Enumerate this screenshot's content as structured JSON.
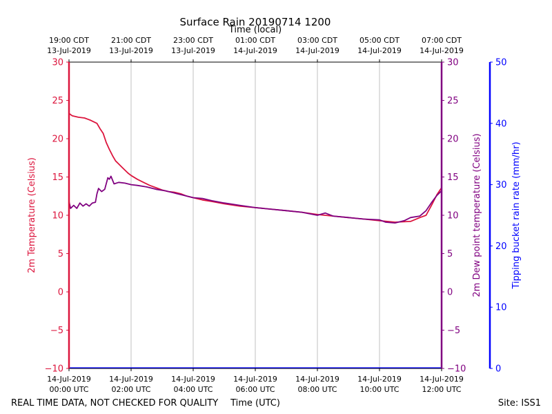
{
  "chart_data": {
    "type": "line",
    "title": "Surface Rain 20190714 1200",
    "top_xlabel": "Time (local)",
    "xlabel": "Time (UTC)",
    "ylabel_left": "2m Temperature (Celsius)",
    "ylabel_right": "2m Dew point temperature (Celsius)",
    "ylabel_far_right": "Tipping bucket rain rate (mm/hr)",
    "footer_left": "REAL TIME DATA, NOT CHECKED FOR QUALITY",
    "footer_right": "Site: ISS1",
    "xlim_hours_utc": [
      0,
      12
    ],
    "ylim_temperature": [
      -10,
      30
    ],
    "ylim_rain_rate": [
      0,
      50
    ],
    "left_ticks": [
      "30",
      "25",
      "20",
      "15",
      "10",
      "5",
      "0",
      "−5",
      "−10"
    ],
    "left_tick_values": [
      30,
      25,
      20,
      15,
      10,
      5,
      0,
      -5,
      -10
    ],
    "right_ticks": [
      "30",
      "25",
      "20",
      "15",
      "10",
      "5",
      "0",
      "−5",
      "−10"
    ],
    "right_tick_values": [
      30,
      25,
      20,
      15,
      10,
      5,
      0,
      -5,
      -10
    ],
    "rain_ticks": [
      "50",
      "40",
      "30",
      "20",
      "10",
      "0"
    ],
    "rain_tick_values": [
      50,
      40,
      30,
      20,
      10,
      0
    ],
    "bottom_ticks": [
      {
        "hour": 0,
        "line1": "14-Jul-2019",
        "line2": "00:00 UTC"
      },
      {
        "hour": 2,
        "line1": "14-Jul-2019",
        "line2": "02:00 UTC"
      },
      {
        "hour": 4,
        "line1": "14-Jul-2019",
        "line2": "04:00 UTC"
      },
      {
        "hour": 6,
        "line1": "14-Jul-2019",
        "line2": "06:00 UTC"
      },
      {
        "hour": 8,
        "line1": "14-Jul-2019",
        "line2": "08:00 UTC"
      },
      {
        "hour": 10,
        "line1": "14-Jul-2019",
        "line2": "10:00 UTC"
      },
      {
        "hour": 12,
        "line1": "14-Jul-2019",
        "line2": "12:00 UTC"
      }
    ],
    "top_ticks": [
      {
        "hour": 0,
        "line1": "19:00 CDT",
        "line2": "13-Jul-2019"
      },
      {
        "hour": 2,
        "line1": "21:00 CDT",
        "line2": "13-Jul-2019"
      },
      {
        "hour": 4,
        "line1": "23:00 CDT",
        "line2": "13-Jul-2019"
      },
      {
        "hour": 6,
        "line1": "01:00 CDT",
        "line2": "14-Jul-2019"
      },
      {
        "hour": 8,
        "line1": "03:00 CDT",
        "line2": "14-Jul-2019"
      },
      {
        "hour": 10,
        "line1": "05:00 CDT",
        "line2": "14-Jul-2019"
      },
      {
        "hour": 12,
        "line1": "07:00 CDT",
        "line2": "14-Jul-2019"
      }
    ],
    "series": [
      {
        "name": "2m Temperature",
        "color": "#dc143c",
        "x": [
          0.0,
          0.1,
          0.3,
          0.5,
          0.7,
          0.9,
          1.0,
          1.1,
          1.2,
          1.3,
          1.4,
          1.5,
          1.6,
          1.7,
          1.8,
          1.9,
          2.0,
          2.2,
          2.4,
          2.6,
          2.8,
          3.0,
          3.2,
          3.4,
          3.6,
          3.8,
          4.0,
          4.3,
          4.6,
          5.0,
          5.5,
          6.0,
          6.5,
          7.0,
          7.5,
          8.0,
          8.5,
          9.0,
          9.5,
          10.0,
          10.5,
          11.0,
          11.3,
          11.5,
          11.7,
          11.85,
          12.0
        ],
        "values": [
          23.3,
          23.0,
          22.8,
          22.7,
          22.4,
          22.0,
          21.3,
          20.7,
          19.5,
          18.6,
          17.8,
          17.1,
          16.7,
          16.3,
          15.9,
          15.5,
          15.2,
          14.7,
          14.3,
          13.9,
          13.6,
          13.3,
          13.1,
          13.0,
          12.8,
          12.5,
          12.3,
          12.0,
          11.8,
          11.5,
          11.2,
          11.0,
          10.8,
          10.6,
          10.4,
          10.1,
          9.9,
          9.7,
          9.5,
          9.3,
          9.1,
          9.2,
          9.7,
          10.0,
          11.5,
          12.7,
          13.6
        ]
      },
      {
        "name": "2m Dew point temperature",
        "color": "#800080",
        "x": [
          0.0,
          0.05,
          0.15,
          0.25,
          0.35,
          0.45,
          0.55,
          0.65,
          0.75,
          0.85,
          0.9,
          0.95,
          1.05,
          1.15,
          1.25,
          1.3,
          1.35,
          1.45,
          1.6,
          1.8,
          2.0,
          2.2,
          2.5,
          2.8,
          3.1,
          3.4,
          3.7,
          4.0,
          4.3,
          4.6,
          5.0,
          5.5,
          6.0,
          6.5,
          7.0,
          7.5,
          8.0,
          8.25,
          8.5,
          9.0,
          9.5,
          10.0,
          10.2,
          10.5,
          10.8,
          11.0,
          11.3,
          11.5,
          11.7,
          11.85,
          12.0
        ],
        "values": [
          11.8,
          10.9,
          11.3,
          10.9,
          11.6,
          11.2,
          11.5,
          11.2,
          11.6,
          11.7,
          12.8,
          13.5,
          13.1,
          13.4,
          14.9,
          14.7,
          15.1,
          14.1,
          14.3,
          14.2,
          14.0,
          13.9,
          13.7,
          13.4,
          13.2,
          12.9,
          12.6,
          12.3,
          12.2,
          11.9,
          11.6,
          11.3,
          11.0,
          10.8,
          10.6,
          10.4,
          10.0,
          10.3,
          9.9,
          9.7,
          9.5,
          9.4,
          9.1,
          9.0,
          9.3,
          9.7,
          9.9,
          10.6,
          11.8,
          12.6,
          13.2
        ]
      }
    ]
  }
}
